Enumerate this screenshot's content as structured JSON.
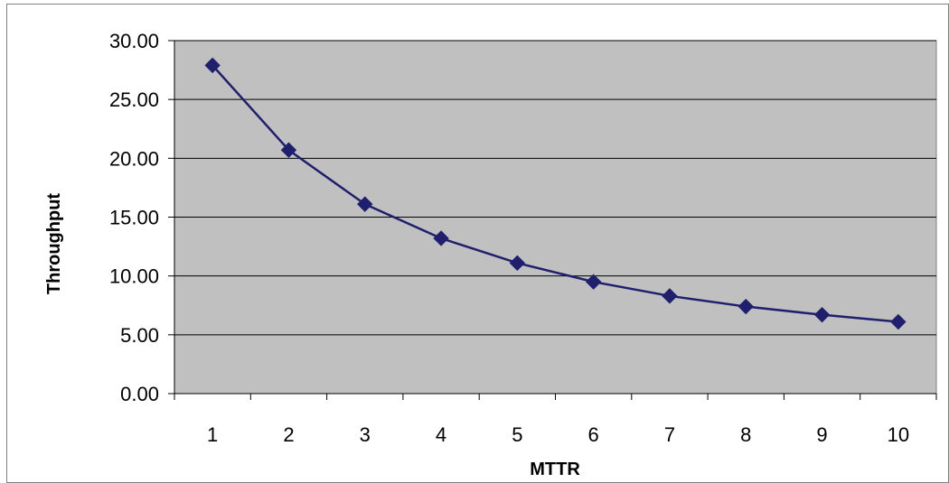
{
  "chart_data": {
    "type": "line",
    "title": "",
    "xlabel": "MTTR",
    "ylabel": "Throughput",
    "categories": [
      "1",
      "2",
      "3",
      "4",
      "5",
      "6",
      "7",
      "8",
      "9",
      "10"
    ],
    "series": [
      {
        "values": [
          27.9,
          20.7,
          16.1,
          13.2,
          11.1,
          9.5,
          8.3,
          7.4,
          6.7,
          6.1
        ],
        "color": "#1f1f6e",
        "marker": "diamond"
      }
    ],
    "ylim": [
      0,
      30
    ],
    "yticks": [
      "0.00",
      "5.00",
      "10.00",
      "15.00",
      "20.00",
      "25.00",
      "30.00"
    ],
    "grid": true,
    "legend": "none",
    "plot_background": "#c0c0c0",
    "gridline_color": "#000000"
  }
}
